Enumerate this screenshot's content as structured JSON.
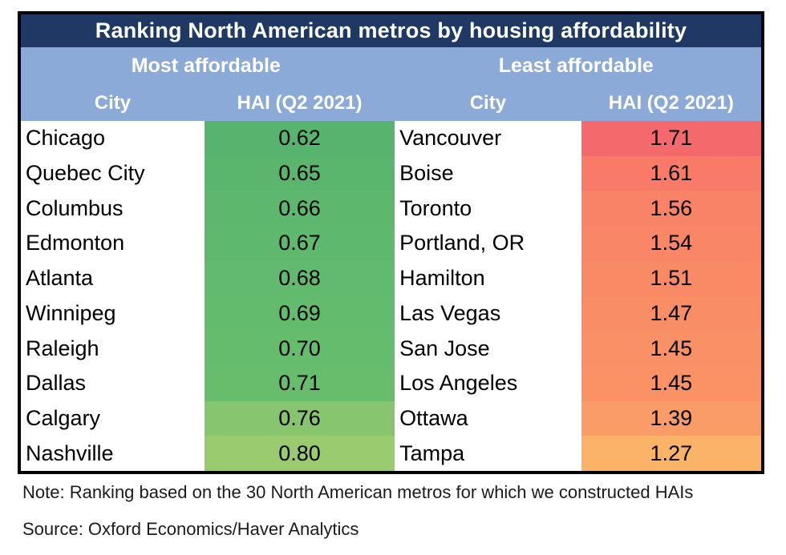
{
  "chart_data": {
    "type": "table",
    "title": "Ranking North American metros by housing affordability",
    "groups": {
      "most": "Most affordable",
      "least": "Least affordable"
    },
    "columns": {
      "city": "City",
      "hai": "HAI (Q2 2021)"
    },
    "most_affordable": [
      {
        "city": "Chicago",
        "hai": "0.62",
        "color": "#56b46e"
      },
      {
        "city": "Quebec City",
        "hai": "0.65",
        "color": "#5ab66d"
      },
      {
        "city": "Columbus",
        "hai": "0.66",
        "color": "#5db86d"
      },
      {
        "city": "Edmonton",
        "hai": "0.67",
        "color": "#5fb96d"
      },
      {
        "city": "Atlanta",
        "hai": "0.68",
        "color": "#61ba6d"
      },
      {
        "city": "Winnipeg",
        "hai": "0.69",
        "color": "#63bb6d"
      },
      {
        "city": "Raleigh",
        "hai": "0.70",
        "color": "#66bc6d"
      },
      {
        "city": "Dallas",
        "hai": "0.71",
        "color": "#68bd6d"
      },
      {
        "city": "Calgary",
        "hai": "0.76",
        "color": "#86c46d"
      },
      {
        "city": "Nashville",
        "hai": "0.80",
        "color": "#9aca6e"
      }
    ],
    "least_affordable": [
      {
        "city": "Vancouver",
        "hai": "1.71",
        "color": "#f4696b"
      },
      {
        "city": "Boise",
        "hai": "1.61",
        "color": "#f87a67"
      },
      {
        "city": "Toronto",
        "hai": "1.56",
        "color": "#f88366"
      },
      {
        "city": "Portland, OR",
        "hai": "1.54",
        "color": "#f98666"
      },
      {
        "city": "Hamilton",
        "hai": "1.51",
        "color": "#f98a66"
      },
      {
        "city": "Las Vegas",
        "hai": "1.47",
        "color": "#f98e66"
      },
      {
        "city": "San Jose",
        "hai": "1.45",
        "color": "#fa9166"
      },
      {
        "city": "Los Angeles",
        "hai": "1.45",
        "color": "#fa9266"
      },
      {
        "city": "Ottawa",
        "hai": "1.39",
        "color": "#fa9c68"
      },
      {
        "city": "Tampa",
        "hai": "1.27",
        "color": "#fbb368"
      }
    ]
  },
  "footer": {
    "note": "Note: Ranking based on the 30 North American metros for which we constructed HAIs",
    "source": "Source: Oxford Economics/Haver Analytics"
  },
  "colors": {
    "title_bg": "#1f3864",
    "header_bg": "#8caad8",
    "border": "#000000",
    "header_text": "#ffffff"
  }
}
